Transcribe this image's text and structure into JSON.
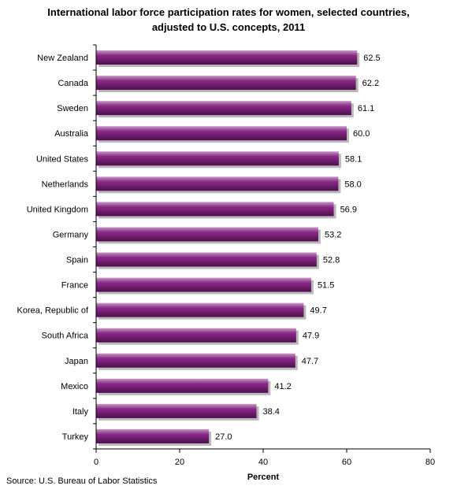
{
  "title_line1": "International labor force participation rates for women, selected countries,",
  "title_line2": "adjusted to U.S. concepts, 2011",
  "source": "Source: U.S. Bureau of Labor Statistics",
  "chart_data": {
    "type": "bar",
    "orientation": "horizontal",
    "title": "International labor force participation rates for women, selected countries, adjusted to U.S. concepts, 2011",
    "categories": [
      "New Zealand",
      "Canada",
      "Sweden",
      "Australia",
      "United States",
      "Netherlands",
      "United Kingdom",
      "Germany",
      "Spain",
      "France",
      "Korea, Republic of",
      "South Africa",
      "Japan",
      "Mexico",
      "Italy",
      "Turkey"
    ],
    "values": [
      62.5,
      62.2,
      61.1,
      60.0,
      58.1,
      58.0,
      56.9,
      53.2,
      52.8,
      51.5,
      49.7,
      47.9,
      47.7,
      41.2,
      38.4,
      27.0
    ],
    "value_labels": [
      "62.5",
      "62.2",
      "61.1",
      "60.0",
      "58.1",
      "58.0",
      "56.9",
      "53.2",
      "52.8",
      "51.5",
      "49.7",
      "47.9",
      "47.7",
      "41.2",
      "38.4",
      "27.0"
    ],
    "xlabel": "Percent",
    "ylabel": "",
    "xlim": [
      0,
      80
    ],
    "xticks": [
      "0",
      "20",
      "40",
      "60",
      "80"
    ],
    "grid": false,
    "bar_color": "#7a1a78"
  }
}
